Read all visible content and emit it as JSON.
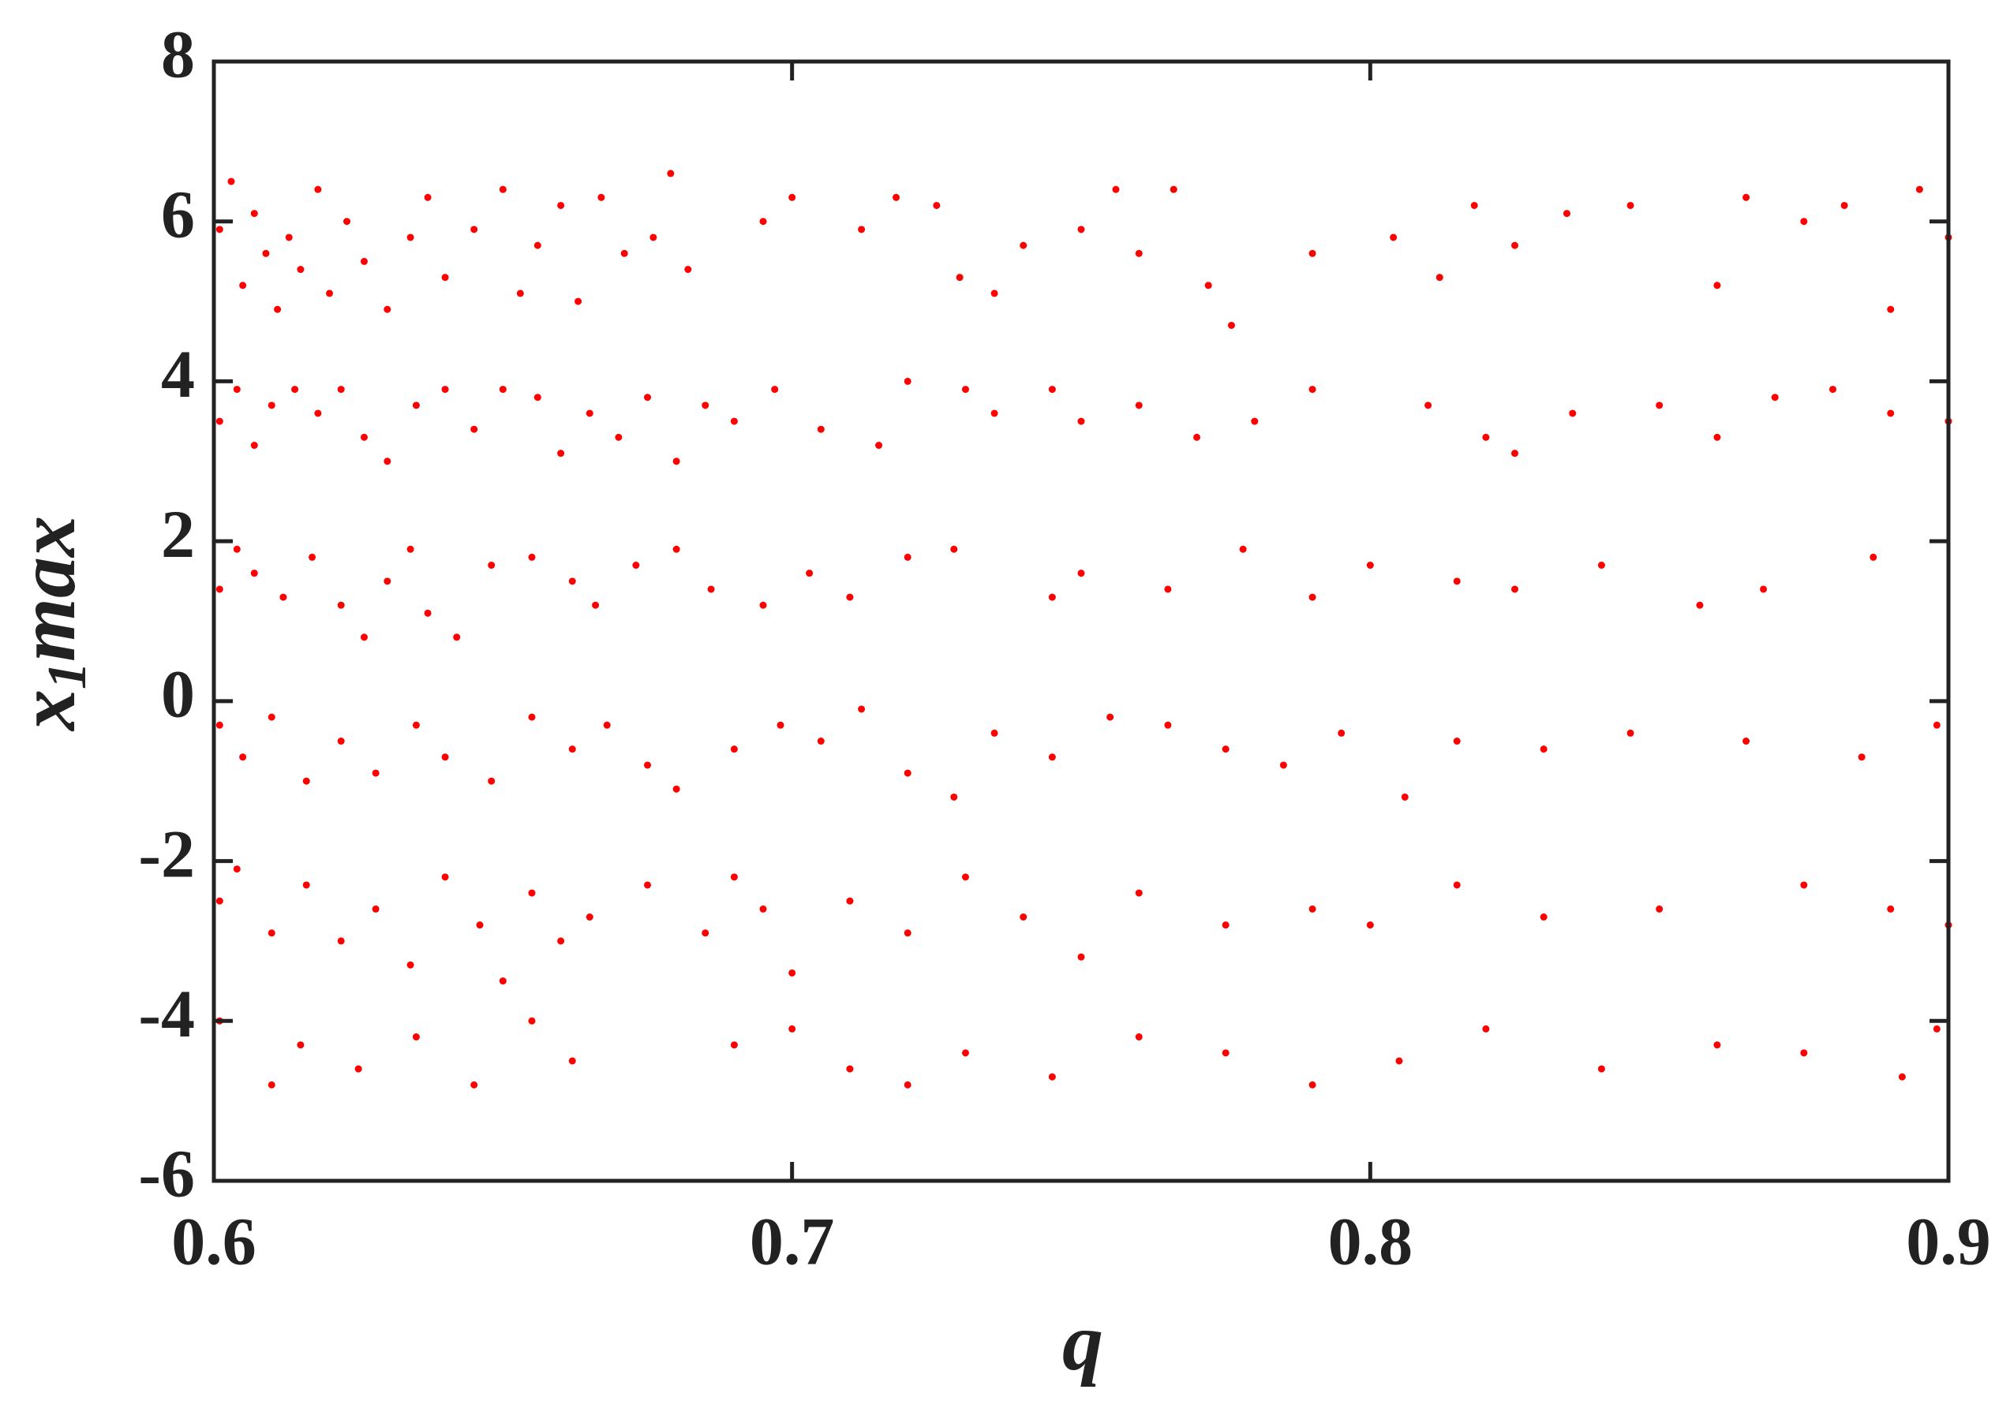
{
  "chart_data": {
    "type": "scatter",
    "color": "#ff0000",
    "xlabel": "q",
    "ylabel_parts": [
      "x",
      "1",
      "max"
    ],
    "xlim": [
      0.6,
      0.9
    ],
    "xticks": [
      0.6,
      0.7,
      0.8,
      0.9
    ],
    "ylim": [
      -6,
      8
    ],
    "yticks": [
      -6,
      -4,
      -2,
      0,
      2,
      4,
      6,
      8
    ],
    "x": [
      0.601,
      0.603,
      0.605,
      0.607,
      0.609,
      0.611,
      0.613,
      0.615,
      0.618,
      0.62,
      0.623,
      0.626,
      0.63,
      0.634,
      0.637,
      0.64,
      0.645,
      0.65,
      0.653,
      0.656,
      0.66,
      0.663,
      0.667,
      0.671,
      0.676,
      0.679,
      0.682,
      0.695,
      0.7,
      0.712,
      0.718,
      0.725,
      0.729,
      0.735,
      0.74,
      0.75,
      0.756,
      0.76,
      0.766,
      0.772,
      0.776,
      0.79,
      0.804,
      0.812,
      0.818,
      0.825,
      0.834,
      0.845,
      0.86,
      0.865,
      0.875,
      0.882,
      0.89,
      0.895,
      0.9,
      0.601,
      0.604,
      0.607,
      0.61,
      0.614,
      0.618,
      0.622,
      0.626,
      0.63,
      0.635,
      0.64,
      0.645,
      0.65,
      0.656,
      0.66,
      0.665,
      0.67,
      0.675,
      0.68,
      0.685,
      0.69,
      0.697,
      0.705,
      0.715,
      0.72,
      0.73,
      0.735,
      0.745,
      0.75,
      0.76,
      0.77,
      0.78,
      0.79,
      0.81,
      0.82,
      0.825,
      0.835,
      0.85,
      0.86,
      0.87,
      0.88,
      0.89,
      0.9,
      0.601,
      0.604,
      0.607,
      0.612,
      0.617,
      0.622,
      0.626,
      0.63,
      0.634,
      0.637,
      0.642,
      0.648,
      0.655,
      0.662,
      0.666,
      0.673,
      0.68,
      0.686,
      0.695,
      0.703,
      0.71,
      0.72,
      0.728,
      0.745,
      0.75,
      0.765,
      0.778,
      0.79,
      0.8,
      0.815,
      0.825,
      0.84,
      0.857,
      0.868,
      0.887,
      0.601,
      0.605,
      0.61,
      0.616,
      0.622,
      0.628,
      0.635,
      0.64,
      0.648,
      0.655,
      0.662,
      0.668,
      0.675,
      0.68,
      0.69,
      0.698,
      0.705,
      0.712,
      0.72,
      0.728,
      0.735,
      0.745,
      0.755,
      0.765,
      0.775,
      0.785,
      0.795,
      0.806,
      0.815,
      0.83,
      0.845,
      0.865,
      0.885,
      0.898,
      0.601,
      0.604,
      0.61,
      0.616,
      0.622,
      0.628,
      0.634,
      0.64,
      0.646,
      0.65,
      0.655,
      0.66,
      0.665,
      0.675,
      0.685,
      0.69,
      0.695,
      0.7,
      0.71,
      0.72,
      0.73,
      0.74,
      0.75,
      0.76,
      0.775,
      0.79,
      0.8,
      0.815,
      0.83,
      0.85,
      0.875,
      0.89,
      0.9,
      0.601,
      0.61,
      0.615,
      0.625,
      0.635,
      0.645,
      0.655,
      0.662,
      0.69,
      0.7,
      0.71,
      0.72,
      0.73,
      0.745,
      0.76,
      0.775,
      0.79,
      0.805,
      0.82,
      0.84,
      0.86,
      0.875,
      0.892,
      0.898
    ],
    "y": [
      5.9,
      6.5,
      5.2,
      6.1,
      5.6,
      4.9,
      5.8,
      5.4,
      6.4,
      5.1,
      6.0,
      5.5,
      4.9,
      5.8,
      6.3,
      5.3,
      5.9,
      6.4,
      5.1,
      5.7,
      6.2,
      5.0,
      6.3,
      5.6,
      5.8,
      6.6,
      5.4,
      6.0,
      6.3,
      5.9,
      6.3,
      6.2,
      5.3,
      5.1,
      5.7,
      5.9,
      6.4,
      5.6,
      6.4,
      5.2,
      4.7,
      5.6,
      5.8,
      5.3,
      6.2,
      5.7,
      6.1,
      6.2,
      5.2,
      6.3,
      6.0,
      6.2,
      4.9,
      6.4,
      5.8,
      3.5,
      3.9,
      3.2,
      3.7,
      3.9,
      3.6,
      3.9,
      3.3,
      3.0,
      3.7,
      3.9,
      3.4,
      3.9,
      3.8,
      3.1,
      3.6,
      3.3,
      3.8,
      3.0,
      3.7,
      3.5,
      3.9,
      3.4,
      3.2,
      4.0,
      3.9,
      3.6,
      3.9,
      3.5,
      3.7,
      3.3,
      3.5,
      3.9,
      3.7,
      3.3,
      3.1,
      3.6,
      3.7,
      3.3,
      3.8,
      3.9,
      3.6,
      3.5,
      1.4,
      1.9,
      1.6,
      1.3,
      1.8,
      1.2,
      0.8,
      1.5,
      1.9,
      1.1,
      0.8,
      1.7,
      1.8,
      1.5,
      1.2,
      1.7,
      1.9,
      1.4,
      1.2,
      1.6,
      1.3,
      1.8,
      1.9,
      1.3,
      1.6,
      1.4,
      1.9,
      1.3,
      1.7,
      1.5,
      1.4,
      1.7,
      1.2,
      1.4,
      1.8,
      -0.3,
      -0.7,
      -0.2,
      -1.0,
      -0.5,
      -0.9,
      -0.3,
      -0.7,
      -1.0,
      -0.2,
      -0.6,
      -0.3,
      -0.8,
      -1.1,
      -0.6,
      -0.3,
      -0.5,
      -0.1,
      -0.9,
      -1.2,
      -0.4,
      -0.7,
      -0.2,
      -0.3,
      -0.6,
      -0.8,
      -0.4,
      -1.2,
      -0.5,
      -0.6,
      -0.4,
      -0.5,
      -0.7,
      -0.3,
      -2.5,
      -2.1,
      -2.9,
      -2.3,
      -3.0,
      -2.6,
      -3.3,
      -2.2,
      -2.8,
      -3.5,
      -2.4,
      -3.0,
      -2.7,
      -2.3,
      -2.9,
      -2.2,
      -2.6,
      -3.4,
      -2.5,
      -2.9,
      -2.2,
      -2.7,
      -3.2,
      -2.4,
      -2.8,
      -2.6,
      -2.8,
      -2.3,
      -2.7,
      -2.6,
      -2.3,
      -2.6,
      -2.8,
      -4.0,
      -4.8,
      -4.3,
      -4.6,
      -4.2,
      -4.8,
      -4.0,
      -4.5,
      -4.3,
      -4.1,
      -4.6,
      -4.8,
      -4.4,
      -4.7,
      -4.2,
      -4.4,
      -4.8,
      -4.5,
      -4.1,
      -4.6,
      -4.3,
      -4.4,
      -4.7,
      -4.1
    ]
  }
}
